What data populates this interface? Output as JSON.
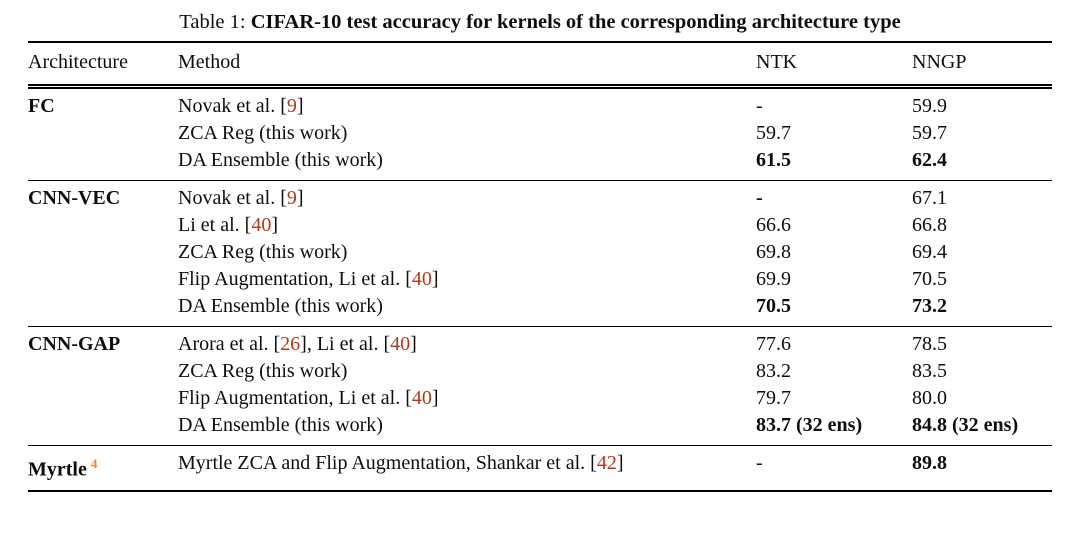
{
  "caption": {
    "prefix": "Table 1: ",
    "title": "CIFAR-10 test accuracy for kernels of the corresponding architecture type"
  },
  "columns": {
    "architecture": "Architecture",
    "method": "Method",
    "ntk": "NTK",
    "nngp": "NNGP"
  },
  "colors": {
    "citation": "#ae3a1c",
    "footnote": "#f0862c"
  },
  "sections": [
    {
      "architecture": "FC",
      "rows": [
        {
          "m": [
            "Novak et al. [",
            "9",
            "]"
          ],
          "ntk": "-",
          "nngp": "59.9"
        },
        {
          "m": [
            "ZCA Reg (this work)"
          ],
          "ntk": "59.7",
          "nngp": "59.7"
        },
        {
          "m": [
            "DA Ensemble (this work)"
          ],
          "ntk": "61.5",
          "nngp": "62.4"
        }
      ]
    },
    {
      "architecture": "CNN-VEC",
      "rows": [
        {
          "m": [
            "Novak et al. [",
            "9",
            "]"
          ],
          "ntk": "-",
          "nngp": "67.1"
        },
        {
          "m": [
            "Li et al. [",
            "40",
            "]"
          ],
          "ntk": "66.6",
          "nngp": "66.8"
        },
        {
          "m": [
            "ZCA Reg (this work)"
          ],
          "ntk": "69.8",
          "nngp": "69.4"
        },
        {
          "m": [
            "Flip Augmentation, Li et al. [",
            "40",
            "]"
          ],
          "ntk": "69.9",
          "nngp": "70.5"
        },
        {
          "m": [
            "DA Ensemble (this work)"
          ],
          "ntk": "70.5",
          "nngp": "73.2"
        }
      ]
    },
    {
      "architecture": "CNN-GAP",
      "rows": [
        {
          "m": [
            "Arora et al. [",
            "26",
            "], Li et al. [",
            "40",
            "]"
          ],
          "ntk": "77.6",
          "nngp": "78.5"
        },
        {
          "m": [
            "ZCA Reg (this work)"
          ],
          "ntk": "83.2",
          "nngp": "83.5"
        },
        {
          "m": [
            "Flip Augmentation, Li et al. [",
            "40",
            "]"
          ],
          "ntk": "79.7",
          "nngp": "80.0"
        },
        {
          "m": [
            "DA Ensemble (this work)"
          ],
          "ntk": "83.7 (32 ens)",
          "nngp": "84.8 (32 ens)"
        }
      ]
    },
    {
      "architecture": "Myrtle",
      "architecture_footnote": "4",
      "rows": [
        {
          "m": [
            "Myrtle ZCA and Flip Augmentation, Shankar et al. [",
            "42",
            "]"
          ],
          "ntk": "-",
          "nngp": "89.8"
        }
      ]
    }
  ]
}
